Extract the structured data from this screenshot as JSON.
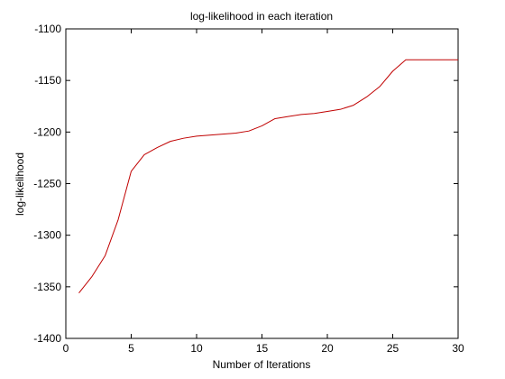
{
  "chart_data": {
    "type": "line",
    "title": "log-likelihood in each iteration",
    "xlabel": "Number of Iterations",
    "ylabel": "log-likelihood",
    "xlim": [
      0,
      30
    ],
    "ylim": [
      -1400,
      -1100
    ],
    "xticks": [
      0,
      5,
      10,
      15,
      20,
      25,
      30
    ],
    "yticks": [
      -1400,
      -1350,
      -1300,
      -1250,
      -1200,
      -1150,
      -1100
    ],
    "xtick_labels": [
      "0",
      "5",
      "10",
      "15",
      "20",
      "25",
      "30"
    ],
    "ytick_labels": [
      "-1400",
      "-1350",
      "-1300",
      "-1250",
      "-1200",
      "-1150",
      "-1100"
    ],
    "grid": false,
    "legend": "none",
    "series": [
      {
        "color": "#c00000",
        "x": [
          1,
          2,
          3,
          4,
          5,
          6,
          7,
          8,
          9,
          10,
          11,
          12,
          13,
          14,
          15,
          16,
          17,
          18,
          19,
          20,
          21,
          22,
          23,
          24,
          25,
          26,
          27,
          28,
          29,
          30
        ],
        "y": [
          -1356,
          -1340,
          -1320,
          -1285,
          -1238,
          -1222,
          -1215,
          -1209,
          -1206,
          -1204,
          -1203,
          -1202,
          -1201,
          -1199,
          -1194,
          -1187,
          -1185,
          -1183,
          -1182,
          -1180,
          -1178,
          -1174,
          -1166,
          -1156,
          -1141,
          -1130,
          -1130,
          -1130,
          -1130,
          -1130
        ]
      }
    ]
  }
}
